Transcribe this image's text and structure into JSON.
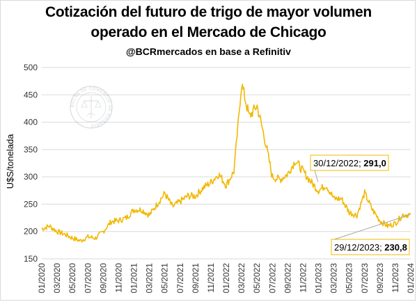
{
  "title_line1": "Cotización del futuro de trigo de mayor volumen",
  "title_line2": "operado en el Mercado de Chicago",
  "subtitle": "@BCRmercados en base a Refinitiv",
  "watermark_text": "BOLSA DE COMERCIO DE ROSARIO",
  "chart_data": {
    "type": "line",
    "ylabel": "U$S/tonelada",
    "ylim": [
      150,
      500
    ],
    "yticks": [
      150,
      200,
      250,
      300,
      350,
      400,
      450,
      500
    ],
    "x_range": [
      "2020-01",
      "2024-01"
    ],
    "xtick_labels": [
      "01/2020",
      "03/2020",
      "05/2020",
      "07/2020",
      "09/2020",
      "11/2020",
      "01/2021",
      "03/2021",
      "05/2021",
      "07/2021",
      "09/2021",
      "11/2021",
      "01/2022",
      "03/2022",
      "05/2022",
      "07/2022",
      "09/2022",
      "11/2022",
      "01/2023",
      "03/2023",
      "05/2023",
      "07/2023",
      "09/2023",
      "11/2023",
      "01/2024"
    ],
    "grid": true,
    "line_color": "#f2b800",
    "series": [
      {
        "x": [
          "2020-01",
          "2020-02",
          "2020-03",
          "2020-04",
          "2020-05",
          "2020-06",
          "2020-07",
          "2020-08",
          "2020-09",
          "2020-10",
          "2020-11",
          "2020-12",
          "2021-01",
          "2021-02",
          "2021-03",
          "2021-04",
          "2021-05",
          "2021-06",
          "2021-07",
          "2021-08",
          "2021-09",
          "2021-10",
          "2021-11",
          "2021-12",
          "2022-01",
          "2022-02",
          "2022-03",
          "2022-04",
          "2022-05",
          "2022-06",
          "2022-07",
          "2022-08",
          "2022-09",
          "2022-10",
          "2022-11",
          "2022-12",
          "2023-01",
          "2023-02",
          "2023-03",
          "2023-04",
          "2023-05",
          "2023-06",
          "2023-07",
          "2023-08",
          "2023-09",
          "2023-10",
          "2023-11",
          "2023-12"
        ],
        "values": [
          205,
          210,
          200,
          195,
          188,
          183,
          190,
          188,
          200,
          218,
          220,
          225,
          240,
          240,
          230,
          250,
          270,
          245,
          255,
          265,
          265,
          280,
          290,
          305,
          285,
          310,
          470,
          410,
          430,
          370,
          300,
          295,
          305,
          330,
          310,
          291,
          275,
          285,
          260,
          260,
          235,
          230,
          270,
          240,
          220,
          210,
          215,
          230.8
        ]
      }
    ],
    "annotations": [
      {
        "label": "30/12/2022; ",
        "value": "291,0",
        "x": "2022-12-30",
        "y": 291.0
      },
      {
        "label": "29/12/2023; ",
        "value": "230,8",
        "x": "2023-12-29",
        "y": 230.8
      }
    ]
  }
}
